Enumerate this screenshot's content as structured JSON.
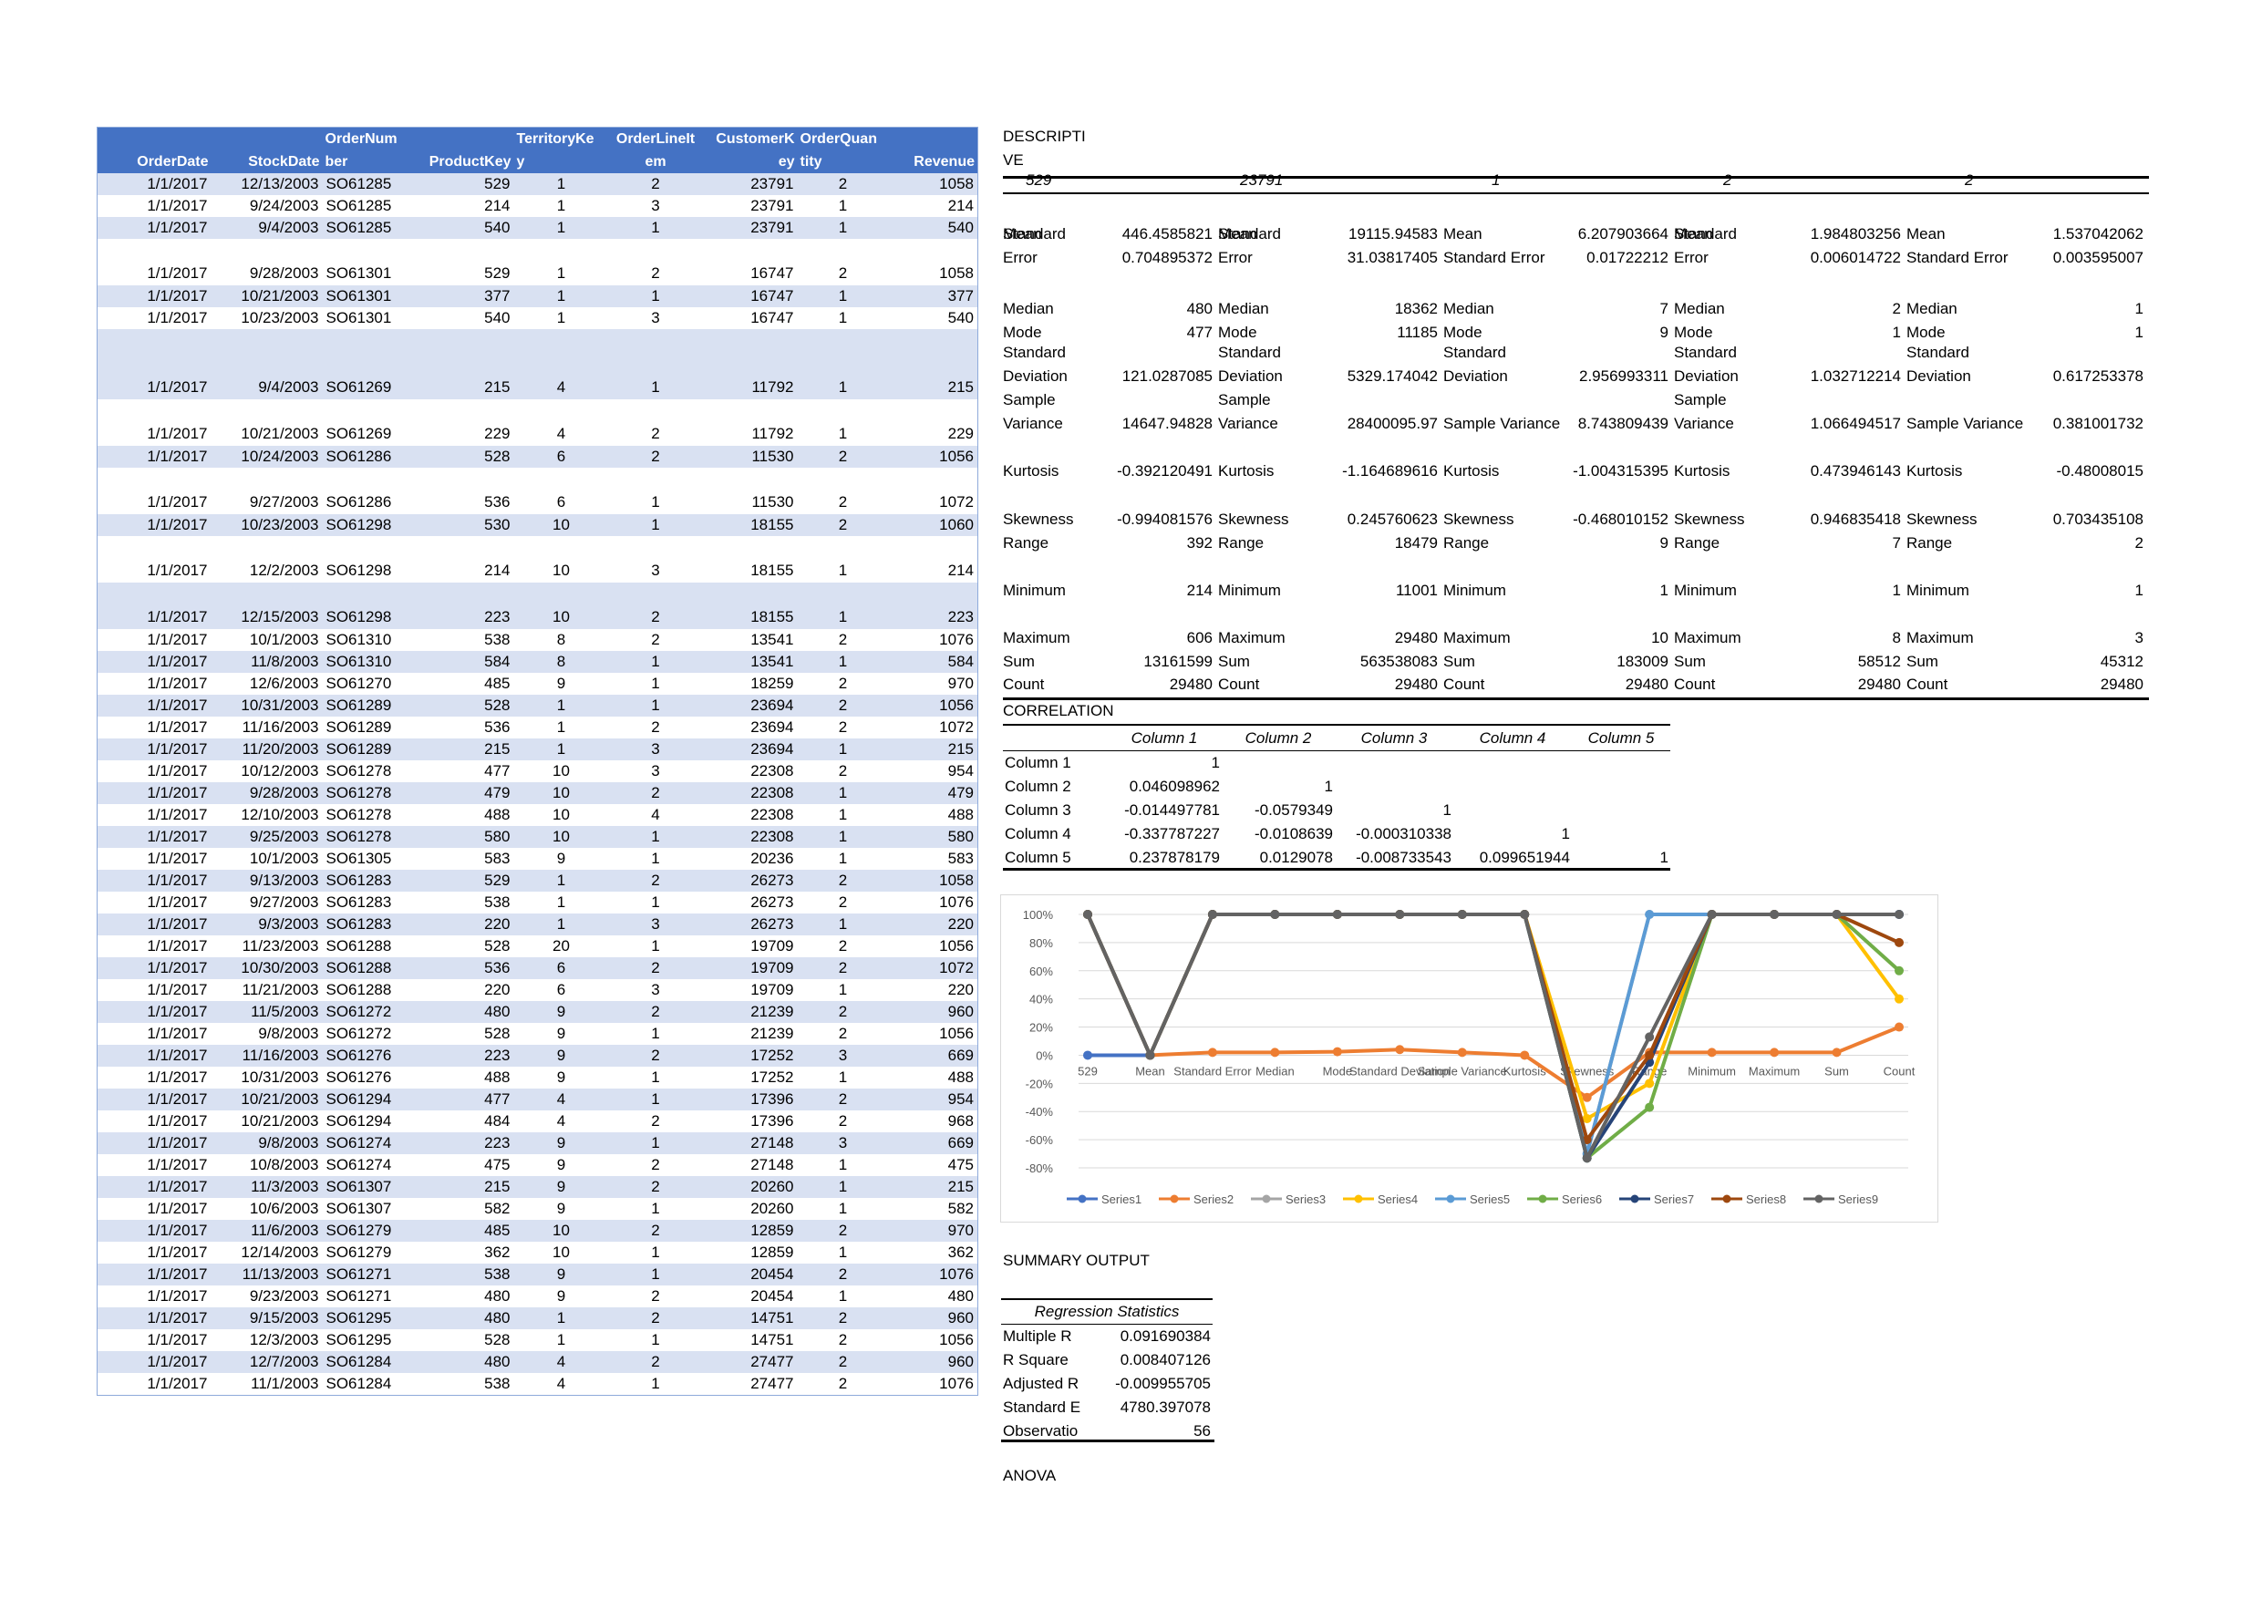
{
  "orders_table": {
    "headers": [
      [
        "",
        "OrderDate"
      ],
      [
        "",
        "StockDate"
      ],
      [
        "OrderNum",
        "ber"
      ],
      [
        "",
        "ProductKey"
      ],
      [
        "TerritoryKe",
        "y"
      ],
      [
        "OrderLineIt",
        "em"
      ],
      [
        "CustomerK",
        "ey"
      ],
      [
        "OrderQuan",
        "tity"
      ],
      [
        "",
        "Revenue"
      ]
    ],
    "rows": [
      [
        "1/1/2017",
        "12/13/2003",
        "SO61285",
        "529",
        "1",
        "2",
        "23791",
        "2",
        "1058"
      ],
      [
        "1/1/2017",
        "9/24/2003",
        "SO61285",
        "214",
        "1",
        "3",
        "23791",
        "1",
        "214"
      ],
      [
        "1/1/2017",
        "9/4/2003",
        "SO61285",
        "540",
        "1",
        "1",
        "23791",
        "1",
        "540"
      ],
      [
        "1/1/2017",
        "9/28/2003",
        "SO61301",
        "529",
        "1",
        "2",
        "16747",
        "2",
        "1058"
      ],
      [
        "1/1/2017",
        "10/21/2003",
        "SO61301",
        "377",
        "1",
        "1",
        "16747",
        "1",
        "377"
      ],
      [
        "1/1/2017",
        "10/23/2003",
        "SO61301",
        "540",
        "1",
        "3",
        "16747",
        "1",
        "540"
      ],
      [
        "1/1/2017",
        "9/4/2003",
        "SO61269",
        "215",
        "4",
        "1",
        "11792",
        "1",
        "215"
      ],
      [
        "1/1/2017",
        "10/21/2003",
        "SO61269",
        "229",
        "4",
        "2",
        "11792",
        "1",
        "229"
      ],
      [
        "1/1/2017",
        "10/24/2003",
        "SO61286",
        "528",
        "6",
        "2",
        "11530",
        "2",
        "1056"
      ],
      [
        "1/1/2017",
        "9/27/2003",
        "SO61286",
        "536",
        "6",
        "1",
        "11530",
        "2",
        "1072"
      ],
      [
        "1/1/2017",
        "10/23/2003",
        "SO61298",
        "530",
        "10",
        "1",
        "18155",
        "2",
        "1060"
      ],
      [
        "1/1/2017",
        "12/2/2003",
        "SO61298",
        "214",
        "10",
        "3",
        "18155",
        "1",
        "214"
      ],
      [
        "1/1/2017",
        "12/15/2003",
        "SO61298",
        "223",
        "10",
        "2",
        "18155",
        "1",
        "223"
      ],
      [
        "1/1/2017",
        "10/1/2003",
        "SO61310",
        "538",
        "8",
        "2",
        "13541",
        "2",
        "1076"
      ],
      [
        "1/1/2017",
        "11/8/2003",
        "SO61310",
        "584",
        "8",
        "1",
        "13541",
        "1",
        "584"
      ],
      [
        "1/1/2017",
        "12/6/2003",
        "SO61270",
        "485",
        "9",
        "1",
        "18259",
        "2",
        "970"
      ],
      [
        "1/1/2017",
        "10/31/2003",
        "SO61289",
        "528",
        "1",
        "1",
        "23694",
        "2",
        "1056"
      ],
      [
        "1/1/2017",
        "11/16/2003",
        "SO61289",
        "536",
        "1",
        "2",
        "23694",
        "2",
        "1072"
      ],
      [
        "1/1/2017",
        "11/20/2003",
        "SO61289",
        "215",
        "1",
        "3",
        "23694",
        "1",
        "215"
      ],
      [
        "1/1/2017",
        "10/12/2003",
        "SO61278",
        "477",
        "10",
        "3",
        "22308",
        "2",
        "954"
      ],
      [
        "1/1/2017",
        "9/28/2003",
        "SO61278",
        "479",
        "10",
        "2",
        "22308",
        "1",
        "479"
      ],
      [
        "1/1/2017",
        "12/10/2003",
        "SO61278",
        "488",
        "10",
        "4",
        "22308",
        "1",
        "488"
      ],
      [
        "1/1/2017",
        "9/25/2003",
        "SO61278",
        "580",
        "10",
        "1",
        "22308",
        "1",
        "580"
      ],
      [
        "1/1/2017",
        "10/1/2003",
        "SO61305",
        "583",
        "9",
        "1",
        "20236",
        "1",
        "583"
      ],
      [
        "1/1/2017",
        "9/13/2003",
        "SO61283",
        "529",
        "1",
        "2",
        "26273",
        "2",
        "1058"
      ],
      [
        "1/1/2017",
        "9/27/2003",
        "SO61283",
        "538",
        "1",
        "1",
        "26273",
        "2",
        "1076"
      ],
      [
        "1/1/2017",
        "9/3/2003",
        "SO61283",
        "220",
        "1",
        "3",
        "26273",
        "1",
        "220"
      ],
      [
        "1/1/2017",
        "11/23/2003",
        "SO61288",
        "528",
        "20",
        "1",
        "19709",
        "2",
        "1056"
      ],
      [
        "1/1/2017",
        "10/30/2003",
        "SO61288",
        "536",
        "6",
        "2",
        "19709",
        "2",
        "1072"
      ],
      [
        "1/1/2017",
        "11/21/2003",
        "SO61288",
        "220",
        "6",
        "3",
        "19709",
        "1",
        "220"
      ],
      [
        "1/1/2017",
        "11/5/2003",
        "SO61272",
        "480",
        "9",
        "2",
        "21239",
        "2",
        "960"
      ],
      [
        "1/1/2017",
        "9/8/2003",
        "SO61272",
        "528",
        "9",
        "1",
        "21239",
        "2",
        "1056"
      ],
      [
        "1/1/2017",
        "11/16/2003",
        "SO61276",
        "223",
        "9",
        "2",
        "17252",
        "3",
        "669"
      ],
      [
        "1/1/2017",
        "10/31/2003",
        "SO61276",
        "488",
        "9",
        "1",
        "17252",
        "1",
        "488"
      ],
      [
        "1/1/2017",
        "10/21/2003",
        "SO61294",
        "477",
        "4",
        "1",
        "17396",
        "2",
        "954"
      ],
      [
        "1/1/2017",
        "10/21/2003",
        "SO61294",
        "484",
        "4",
        "2",
        "17396",
        "2",
        "968"
      ],
      [
        "1/1/2017",
        "9/8/2003",
        "SO61274",
        "223",
        "9",
        "1",
        "27148",
        "3",
        "669"
      ],
      [
        "1/1/2017",
        "10/8/2003",
        "SO61274",
        "475",
        "9",
        "2",
        "27148",
        "1",
        "475"
      ],
      [
        "1/1/2017",
        "11/3/2003",
        "SO61307",
        "215",
        "9",
        "2",
        "20260",
        "1",
        "215"
      ],
      [
        "1/1/2017",
        "10/6/2003",
        "SO61307",
        "582",
        "9",
        "1",
        "20260",
        "1",
        "582"
      ],
      [
        "1/1/2017",
        "11/6/2003",
        "SO61279",
        "485",
        "10",
        "2",
        "12859",
        "2",
        "970"
      ],
      [
        "1/1/2017",
        "12/14/2003",
        "SO61279",
        "362",
        "10",
        "1",
        "12859",
        "1",
        "362"
      ],
      [
        "1/1/2017",
        "11/13/2003",
        "SO61271",
        "538",
        "9",
        "1",
        "20454",
        "2",
        "1076"
      ],
      [
        "1/1/2017",
        "9/23/2003",
        "SO61271",
        "480",
        "9",
        "2",
        "20454",
        "1",
        "480"
      ],
      [
        "1/1/2017",
        "9/15/2003",
        "SO61295",
        "480",
        "1",
        "2",
        "14751",
        "2",
        "960"
      ],
      [
        "1/1/2017",
        "12/3/2003",
        "SO61295",
        "528",
        "1",
        "1",
        "14751",
        "2",
        "1056"
      ],
      [
        "1/1/2017",
        "12/7/2003",
        "SO61284",
        "480",
        "4",
        "2",
        "27477",
        "2",
        "960"
      ],
      [
        "1/1/2017",
        "11/1/2003",
        "SO61284",
        "538",
        "4",
        "1",
        "27477",
        "2",
        "1076"
      ]
    ]
  },
  "descriptive": {
    "title_line1": "DESCRIPTI",
    "title_line2": "VE",
    "column_headers": [
      "529",
      "23791",
      "1",
      "2",
      "2"
    ],
    "blocks": [
      {
        "rows": [
          [
            "Mean",
            "446.4585821"
          ],
          [
            "Standard Error",
            "0.704895372"
          ],
          [
            "Median",
            "480"
          ],
          [
            "Mode",
            "477"
          ],
          [
            "Standard Deviation",
            "121.0287085"
          ],
          [
            "Sample Variance",
            "14647.94828"
          ],
          [
            "Kurtosis",
            "-0.392120491"
          ],
          [
            "Skewness",
            "-0.994081576"
          ],
          [
            "Range",
            "392"
          ],
          [
            "Minimum",
            "214"
          ],
          [
            "Maximum",
            "606"
          ],
          [
            "Sum",
            "13161599"
          ],
          [
            "Count",
            "29480"
          ]
        ]
      },
      {
        "rows": [
          [
            "Mean",
            "19115.94583"
          ],
          [
            "Standard Error",
            "31.03817405"
          ],
          [
            "Median",
            "18362"
          ],
          [
            "Mode",
            "11185"
          ],
          [
            "Standard Deviation",
            "5329.174042"
          ],
          [
            "Sample Variance",
            "28400095.97"
          ],
          [
            "Kurtosis",
            "-1.164689616"
          ],
          [
            "Skewness",
            "0.245760623"
          ],
          [
            "Range",
            "18479"
          ],
          [
            "Minimum",
            "11001"
          ],
          [
            "Maximum",
            "29480"
          ],
          [
            "Sum",
            "563538083"
          ],
          [
            "Count",
            "29480"
          ]
        ]
      },
      {
        "rows": [
          [
            "Mean",
            "6.207903664"
          ],
          [
            "Standard Error",
            "0.01722212"
          ],
          [
            "Median",
            "7"
          ],
          [
            "Mode",
            "9"
          ],
          [
            "Standard Deviation",
            "2.956993311"
          ],
          [
            "Sample Variance",
            "8.743809439"
          ],
          [
            "Kurtosis",
            "-1.004315395"
          ],
          [
            "Skewness",
            "-0.468010152"
          ],
          [
            "Range",
            "9"
          ],
          [
            "Minimum",
            "1"
          ],
          [
            "Maximum",
            "10"
          ],
          [
            "Sum",
            "183009"
          ],
          [
            "Count",
            "29480"
          ]
        ]
      },
      {
        "rows": [
          [
            "Mean",
            "1.984803256"
          ],
          [
            "Standard Error",
            "0.006014722"
          ],
          [
            "Median",
            "2"
          ],
          [
            "Mode",
            "1"
          ],
          [
            "Standard Deviation",
            "1.032712214"
          ],
          [
            "Sample Variance",
            "1.066494517"
          ],
          [
            "Kurtosis",
            "0.473946143"
          ],
          [
            "Skewness",
            "0.946835418"
          ],
          [
            "Range",
            "7"
          ],
          [
            "Minimum",
            "1"
          ],
          [
            "Maximum",
            "8"
          ],
          [
            "Sum",
            "58512"
          ],
          [
            "Count",
            "29480"
          ]
        ]
      },
      {
        "rows": [
          [
            "Mean",
            "1.537042062"
          ],
          [
            "Standard Error",
            "0.003595007"
          ],
          [
            "Median",
            "1"
          ],
          [
            "Mode",
            "1"
          ],
          [
            "Standard Deviation",
            "0.617253378"
          ],
          [
            "Sample Variance",
            "0.381001732"
          ],
          [
            "Kurtosis",
            "-0.48008015"
          ],
          [
            "Skewness",
            "0.703435108"
          ],
          [
            "Range",
            "2"
          ],
          [
            "Minimum",
            "1"
          ],
          [
            "Maximum",
            "3"
          ],
          [
            "Sum",
            "45312"
          ],
          [
            "Count",
            "29480"
          ]
        ]
      }
    ]
  },
  "correlation": {
    "title": "CORRELATION",
    "headers": [
      "Column 1",
      "Column 2",
      "Column 3",
      "Column 4",
      "Column 5"
    ],
    "rows": [
      [
        "Column 1",
        "1",
        "",
        "",
        "",
        ""
      ],
      [
        "Column 2",
        "0.046098962",
        "1",
        "",
        "",
        ""
      ],
      [
        "Column 3",
        "-0.014497781",
        "-0.0579349",
        "1",
        "",
        ""
      ],
      [
        "Column 4",
        "-0.337787227",
        "-0.0108639",
        "-0.000310338",
        "1",
        ""
      ],
      [
        "Column 5",
        "0.237878179",
        "0.0129078",
        "-0.008733543",
        "0.099651944",
        "1"
      ]
    ]
  },
  "chart_data": {
    "type": "line",
    "categories": [
      "529",
      "Mean",
      "Standard Error",
      "Median",
      "Mode",
      "Standard Deviation",
      "Sample Variance",
      "Kurtosis",
      "Skewness",
      "Range",
      "Minimum",
      "Maximum",
      "Sum",
      "Count"
    ],
    "ylim": [
      -0.8,
      1.0
    ],
    "yticks": [
      "100%",
      "80%",
      "60%",
      "40%",
      "20%",
      "0%",
      "-20%",
      "-40%",
      "-60%",
      "-80%"
    ],
    "ytick_values": [
      1.0,
      0.8,
      0.6,
      0.4,
      0.2,
      0,
      -0.2,
      -0.4,
      -0.6,
      -0.8
    ],
    "grid": true,
    "legend": "bottom",
    "colors": [
      "#4472c4",
      "#ed7d31",
      "#a5a5a5",
      "#ffc000",
      "#5b9bd5",
      "#70ad47",
      "#264478",
      "#9e480e",
      "#636363"
    ],
    "series": [
      {
        "name": "Series1",
        "values": [
          0,
          0,
          null,
          null,
          null,
          null,
          null,
          null,
          null,
          null,
          null,
          null,
          null,
          null
        ]
      },
      {
        "name": "Series2",
        "values": [
          null,
          0,
          0.02,
          0.02,
          0.025,
          0.04,
          0.02,
          0,
          -0.3,
          0.02,
          0.02,
          0.02,
          0.02,
          0.2
        ]
      },
      {
        "name": "Series3",
        "values": [
          1,
          0,
          1,
          1,
          1,
          1,
          1,
          1,
          -0.7,
          1,
          1,
          1,
          1,
          1
        ]
      },
      {
        "name": "Series4",
        "values": [
          1,
          0,
          1,
          1,
          1,
          1,
          1,
          1,
          -0.45,
          -0.2,
          1,
          1,
          1,
          0.4
        ]
      },
      {
        "name": "Series5",
        "values": [
          1,
          0,
          1,
          1,
          1,
          1,
          1,
          1,
          -0.7,
          1,
          1,
          1,
          1,
          1
        ]
      },
      {
        "name": "Series6",
        "values": [
          1,
          0,
          1,
          1,
          1,
          1,
          1,
          1,
          -0.73,
          -0.37,
          1,
          1,
          1,
          0.6
        ]
      },
      {
        "name": "Series7",
        "values": [
          1,
          0,
          1,
          1,
          1,
          1,
          1,
          1,
          -0.73,
          -0.05,
          1,
          1,
          1,
          1
        ]
      },
      {
        "name": "Series8",
        "values": [
          1,
          0,
          1,
          1,
          1,
          1,
          1,
          1,
          -0.6,
          0,
          1,
          1,
          1,
          0.8
        ]
      },
      {
        "name": "Series9",
        "values": [
          1,
          0,
          1,
          1,
          1,
          1,
          1,
          1,
          -0.73,
          0.13,
          1,
          1,
          1,
          1
        ]
      }
    ]
  },
  "summary": {
    "title": "SUMMARY OUTPUT",
    "regression_header": "Regression Statistics",
    "rows": [
      [
        "Multiple R",
        "0.091690384"
      ],
      [
        "R Square",
        "0.008407126"
      ],
      [
        "Adjusted R",
        "-0.009955705"
      ],
      [
        "Standard E",
        "4780.397078"
      ],
      [
        "Observatio",
        "56"
      ]
    ],
    "anova_label": "ANOVA"
  }
}
